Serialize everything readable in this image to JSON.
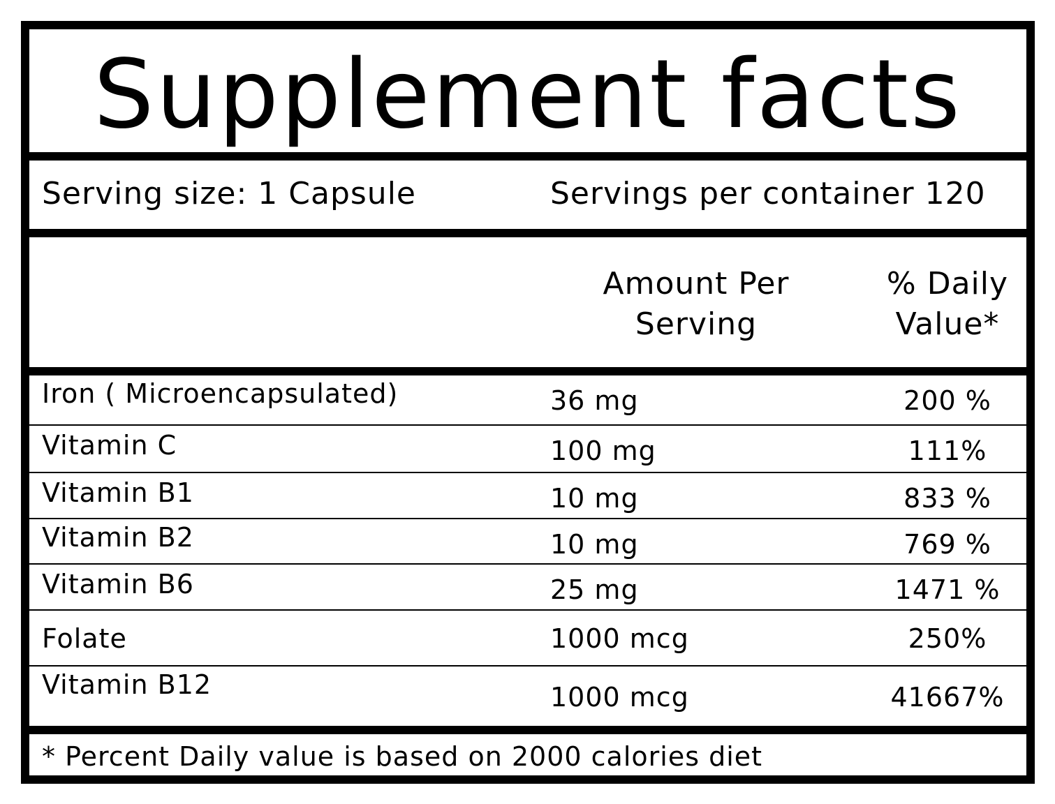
{
  "title": "Supplement facts",
  "serving_size": "Serving size: 1 Capsule",
  "servings_per_container": "Servings per container 120",
  "columns": {
    "amount_line1": "Amount Per",
    "amount_line2": "Serving",
    "dv_line1": "% Daily",
    "dv_line2": "Value*"
  },
  "nutrients": [
    {
      "name": "Iron ( Microencapsulated)",
      "amount": "36 mg",
      "dv": "200 %"
    },
    {
      "name": "Vitamin C",
      "amount": "100 mg",
      "dv": "111%"
    },
    {
      "name": "Vitamin B1",
      "amount": "10 mg",
      "dv": "833 %"
    },
    {
      "name": "Vitamin B2",
      "amount": "10 mg",
      "dv": "769 %"
    },
    {
      "name": "Vitamin B6",
      "amount": "25  mg",
      "dv": "1471 %"
    },
    {
      "name": "Folate",
      "amount": "1000 mcg",
      "dv": "250%"
    },
    {
      "name": "Vitamin B12",
      "amount": "1000 mcg",
      "dv": "41667%"
    }
  ],
  "footnote": "* Percent Daily value is based on 2000 calories diet"
}
